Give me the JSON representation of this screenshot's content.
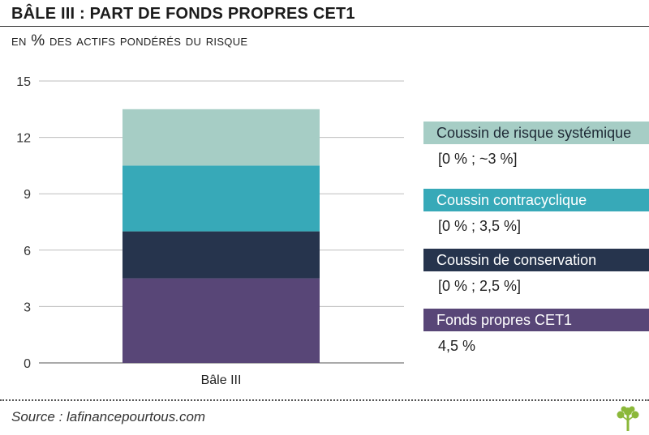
{
  "header": {
    "title": "BÂLE III : PART DE FONDS PROPRES CET1",
    "subtitle": "en % des actifs pondérés du risque"
  },
  "chart_data": {
    "type": "bar",
    "stacked": true,
    "categories": [
      "Bâle III"
    ],
    "ylim": [
      0,
      15
    ],
    "yticks": [
      0,
      3,
      6,
      9,
      12,
      15
    ],
    "grid": true,
    "series": [
      {
        "name": "Fonds propres CET1",
        "values": [
          4.5
        ],
        "color": "#584677"
      },
      {
        "name": "Coussin de conservation",
        "values": [
          2.5
        ],
        "color": "#26344d"
      },
      {
        "name": "Coussin contracyclique",
        "values": [
          3.5
        ],
        "color": "#37a9b8"
      },
      {
        "name": "Coussin de risque systémique",
        "values": [
          3.0
        ],
        "color": "#a6cdc5"
      }
    ]
  },
  "legend": [
    {
      "label": "Coussin de risque systémique",
      "range": "[0 % ; ~3 %]",
      "color": "#a6cdc5",
      "text_color": "#1f2a36"
    },
    {
      "label": "Coussin contracyclique",
      "range": "[0 % ; 3,5 %]",
      "color": "#37a9b8",
      "text_color": "#ffffff"
    },
    {
      "label": "Coussin de conservation",
      "range": "[0 % ; 2,5 %]",
      "color": "#26344d",
      "text_color": "#ffffff"
    },
    {
      "label": "Fonds propres CET1",
      "range": "4,5 %",
      "color": "#584677",
      "text_color": "#ffffff"
    }
  ],
  "footer": {
    "source": "Source : lafinancepourtous.com",
    "logo_icon": "tree-logo-icon",
    "logo_color": "#8bb83a"
  }
}
